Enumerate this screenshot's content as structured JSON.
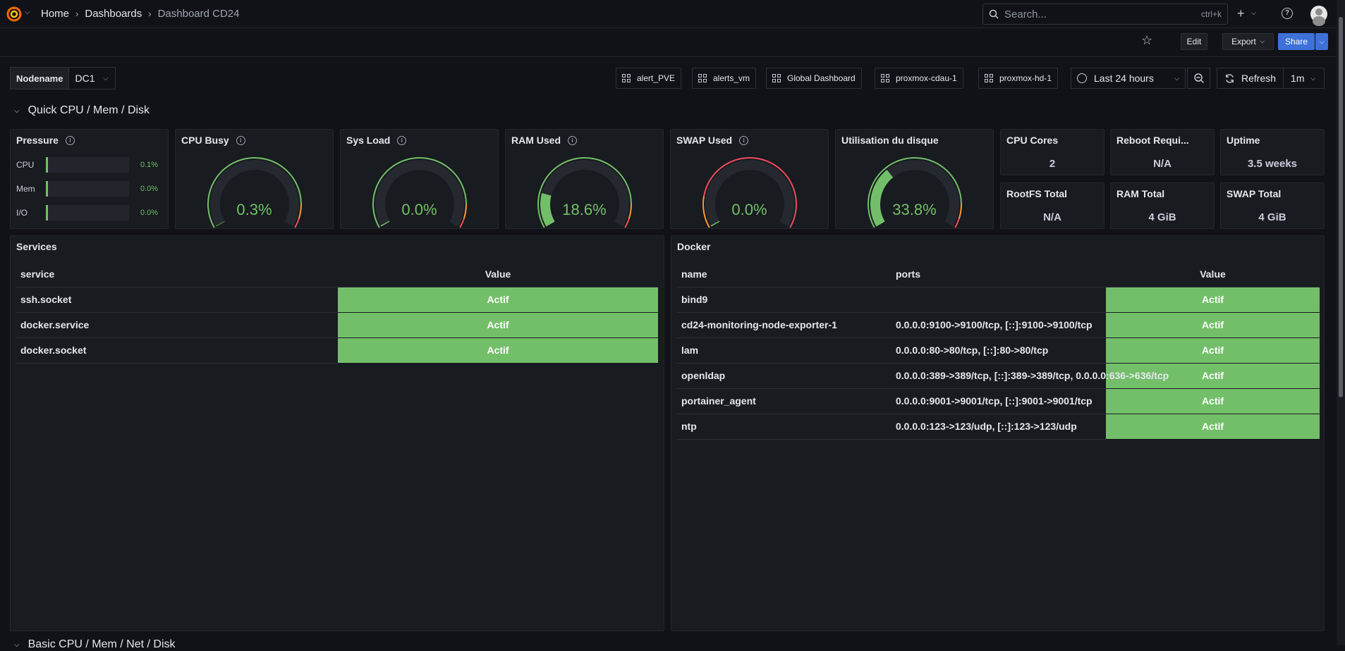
{
  "nav": {
    "breadcrumbs": [
      "Home",
      "Dashboards",
      "Dashboard CD24"
    ],
    "search_placeholder": "Search...",
    "search_shortcut": "ctrl+k"
  },
  "toolbar": {
    "edit": "Edit",
    "export": "Export",
    "share": "Share"
  },
  "variables": {
    "label": "Nodename",
    "value": "DC1"
  },
  "links": [
    "alert_PVE",
    "alerts_vm",
    "Global Dashboard",
    "proxmox-cdau-1",
    "proxmox-hd-1"
  ],
  "time": {
    "range": "Last 24 hours",
    "refresh": "Refresh",
    "interval": "1m"
  },
  "rows": {
    "quick": "Quick CPU / Mem / Disk",
    "basic": "Basic CPU / Mem / Net / Disk"
  },
  "pressure": {
    "title": "Pressure",
    "items": [
      {
        "label": "CPU",
        "value": "0.1%",
        "fraction": 0.001
      },
      {
        "label": "Mem",
        "value": "0.0%",
        "fraction": 0.0
      },
      {
        "label": "I/O",
        "value": "0.0%",
        "fraction": 0.0
      }
    ]
  },
  "gauges": [
    {
      "title": "CPU Busy",
      "value": "0.3%",
      "fraction": 0.003,
      "color": "#73bf69"
    },
    {
      "title": "Sys Load",
      "value": "0.0%",
      "fraction": 0.0,
      "color": "#73bf69"
    },
    {
      "title": "RAM Used",
      "value": "18.6%",
      "fraction": 0.186,
      "color": "#73bf69"
    },
    {
      "title": "SWAP Used",
      "value": "0.0%",
      "fraction": 0.0,
      "color": "#73bf69"
    },
    {
      "title": "Utilisation du disque",
      "value": "33.8%",
      "fraction": 0.338,
      "color": "#73bf69"
    }
  ],
  "stats": [
    {
      "title": "CPU Cores",
      "value": "2"
    },
    {
      "title": "Reboot Requi...",
      "value": "N/A"
    },
    {
      "title": "Uptime",
      "value": "3.5 weeks"
    },
    {
      "title": "RootFS Total",
      "value": "N/A"
    },
    {
      "title": "RAM Total",
      "value": "4 GiB"
    },
    {
      "title": "SWAP Total",
      "value": "4 GiB"
    }
  ],
  "services": {
    "title": "Services",
    "columns": [
      "service",
      "Value"
    ],
    "rows": [
      {
        "service": "ssh.socket",
        "value": "Actif"
      },
      {
        "service": "docker.service",
        "value": "Actif"
      },
      {
        "service": "docker.socket",
        "value": "Actif"
      }
    ]
  },
  "docker": {
    "title": "Docker",
    "columns": [
      "name",
      "ports",
      "Value"
    ],
    "rows": [
      {
        "name": "bind9",
        "ports": "",
        "value": "Actif"
      },
      {
        "name": "cd24-monitoring-node-exporter-1",
        "ports": "0.0.0.0:9100->9100/tcp, [::]:9100->9100/tcp",
        "value": "Actif"
      },
      {
        "name": "lam",
        "ports": "0.0.0.0:80->80/tcp, [::]:80->80/tcp",
        "value": "Actif"
      },
      {
        "name": "openldap",
        "ports": "0.0.0.0:389->389/tcp, [::]:389->389/tcp, 0.0.0.0:636->636/tcp",
        "value": "Actif"
      },
      {
        "name": "portainer_agent",
        "ports": "0.0.0.0:9001->9001/tcp, [::]:9001->9001/tcp",
        "value": "Actif"
      },
      {
        "name": "ntp",
        "ports": "0.0.0.0:123->123/udp, [::]:123->123/udp",
        "value": "Actif"
      }
    ]
  },
  "colors": {
    "ok": "#73bf69",
    "warn": "#ff9830",
    "bad": "#f2495c",
    "accent": "#3d71d9"
  }
}
